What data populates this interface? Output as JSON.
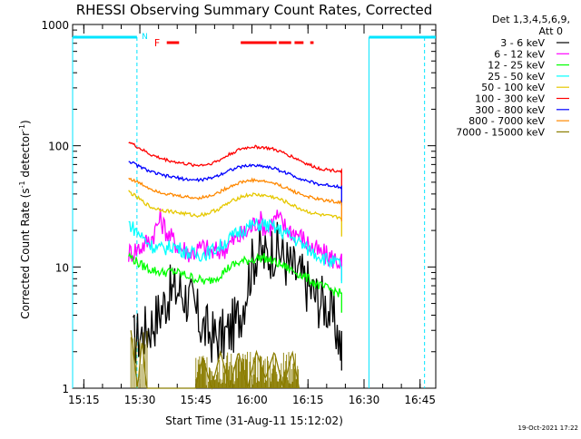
{
  "chart_data": {
    "type": "line",
    "title": "RHESSI Observing Summary Count Rates, Corrected",
    "xlabel": "Start Time (31-Aug-11 15:12:02)",
    "ylabel_main": "Corrected Count Rate (s",
    "ylabel_sup1": "-1",
    "ylabel_mid": " detector",
    "ylabel_sup2": "-1",
    "ylabel_end": ")",
    "yscale": "log",
    "ylim": [
      1,
      1000
    ],
    "xlim_minutes": [
      15.2,
      16.82
    ],
    "x_ticks": [
      "15:15",
      "15:30",
      "15:45",
      "16:00",
      "16:15",
      "16:30",
      "16:45"
    ],
    "y_ticks": [
      "1",
      "10",
      "100",
      "1000"
    ],
    "legend_title_line1": "Det 1,3,4,5,6,9,",
    "legend_title_line2": "Att 0",
    "footer_date": "19-Oct-2021 17:22",
    "flag_labels": {
      "night": "N",
      "flare": "F"
    },
    "colors": {
      "axis": "#000000",
      "night": "#00e5ff",
      "flare": "#ff0000"
    },
    "series": [
      {
        "name": "3 - 6 keV",
        "color": "#000000",
        "points": [
          [
            15.47,
            2.5
          ],
          [
            15.53,
            3.0
          ],
          [
            15.58,
            4.0
          ],
          [
            15.63,
            6.0
          ],
          [
            15.68,
            6.5
          ],
          [
            15.73,
            5.0
          ],
          [
            15.78,
            3.2
          ],
          [
            15.83,
            2.6
          ],
          [
            15.88,
            2.7
          ],
          [
            15.93,
            3.5
          ],
          [
            15.96,
            5.0
          ],
          [
            15.99,
            9.0
          ],
          [
            16.02,
            13.5
          ],
          [
            16.06,
            12.0
          ],
          [
            16.1,
            14.5
          ],
          [
            16.13,
            13.0
          ],
          [
            16.17,
            10.0
          ],
          [
            16.21,
            8.5
          ],
          [
            16.25,
            7.0
          ],
          [
            16.29,
            5.5
          ],
          [
            16.33,
            5.0
          ],
          [
            16.38,
            3.0
          ],
          [
            16.4,
            2.0
          ]
        ]
      },
      {
        "name": "6 - 12 keV",
        "color": "#ff00ff",
        "points": [
          [
            15.45,
            13.0
          ],
          [
            15.5,
            14.5
          ],
          [
            15.55,
            17.0
          ],
          [
            15.59,
            25.0
          ],
          [
            15.63,
            18.0
          ],
          [
            15.68,
            14.5
          ],
          [
            15.73,
            13.0
          ],
          [
            15.78,
            14.5
          ],
          [
            15.83,
            13.0
          ],
          [
            15.88,
            14.5
          ],
          [
            15.93,
            17.0
          ],
          [
            15.98,
            19.5
          ],
          [
            16.03,
            25.0
          ],
          [
            16.07,
            20.0
          ],
          [
            16.11,
            26.0
          ],
          [
            16.15,
            21.0
          ],
          [
            16.2,
            19.0
          ],
          [
            16.25,
            15.5
          ],
          [
            16.3,
            13.0
          ],
          [
            16.35,
            12.0
          ],
          [
            16.4,
            11.0
          ]
        ]
      },
      {
        "name": "12 - 25 keV",
        "color": "#00ff00",
        "points": [
          [
            15.45,
            12.5
          ],
          [
            15.5,
            10.5
          ],
          [
            15.55,
            9.5
          ],
          [
            15.6,
            9.0
          ],
          [
            15.65,
            9.2
          ],
          [
            15.7,
            8.6
          ],
          [
            15.75,
            8.0
          ],
          [
            15.8,
            7.5
          ],
          [
            15.85,
            8.4
          ],
          [
            15.9,
            10.0
          ],
          [
            15.95,
            11.0
          ],
          [
            16.0,
            11.5
          ],
          [
            16.05,
            12.0
          ],
          [
            16.1,
            11.0
          ],
          [
            16.15,
            10.0
          ],
          [
            16.2,
            9.0
          ],
          [
            16.25,
            8.0
          ],
          [
            16.3,
            7.0
          ],
          [
            16.35,
            6.5
          ],
          [
            16.4,
            6.0
          ]
        ]
      },
      {
        "name": "25 - 50 keV",
        "color": "#00ffff",
        "points": [
          [
            15.45,
            23.0
          ],
          [
            15.5,
            18.5
          ],
          [
            15.55,
            15.0
          ],
          [
            15.6,
            14.0
          ],
          [
            15.65,
            15.0
          ],
          [
            15.7,
            13.5
          ],
          [
            15.75,
            12.5
          ],
          [
            15.8,
            13.0
          ],
          [
            15.85,
            14.5
          ],
          [
            15.9,
            17.0
          ],
          [
            15.95,
            20.0
          ],
          [
            16.0,
            22.0
          ],
          [
            16.05,
            22.5
          ],
          [
            16.1,
            21.0
          ],
          [
            16.15,
            19.0
          ],
          [
            16.2,
            16.5
          ],
          [
            16.25,
            14.0
          ],
          [
            16.3,
            12.5
          ],
          [
            16.35,
            11.0
          ],
          [
            16.4,
            10.5
          ]
        ]
      },
      {
        "name": "50 - 100 keV",
        "color": "#e6c800",
        "points": [
          [
            15.45,
            42.0
          ],
          [
            15.5,
            36.0
          ],
          [
            15.55,
            31.0
          ],
          [
            15.6,
            29.5
          ],
          [
            15.65,
            28.5
          ],
          [
            15.7,
            27.5
          ],
          [
            15.75,
            26.5
          ],
          [
            15.8,
            27.5
          ],
          [
            15.85,
            30.0
          ],
          [
            15.9,
            34.0
          ],
          [
            15.95,
            38.0
          ],
          [
            16.0,
            39.5
          ],
          [
            16.05,
            39.0
          ],
          [
            16.1,
            37.5
          ],
          [
            16.15,
            34.5
          ],
          [
            16.2,
            31.0
          ],
          [
            16.25,
            28.5
          ],
          [
            16.3,
            27.0
          ],
          [
            16.35,
            26.0
          ],
          [
            16.4,
            25.5
          ]
        ]
      },
      {
        "name": "100 - 300 keV",
        "color": "#ff0000",
        "points": [
          [
            15.45,
            108.0
          ],
          [
            15.5,
            95.0
          ],
          [
            15.55,
            84.0
          ],
          [
            15.6,
            78.0
          ],
          [
            15.65,
            74.0
          ],
          [
            15.7,
            71.0
          ],
          [
            15.75,
            69.0
          ],
          [
            15.8,
            70.0
          ],
          [
            15.85,
            75.0
          ],
          [
            15.9,
            85.0
          ],
          [
            15.95,
            94.0
          ],
          [
            16.0,
            98.0
          ],
          [
            16.05,
            97.0
          ],
          [
            16.1,
            93.0
          ],
          [
            16.15,
            86.0
          ],
          [
            16.2,
            78.0
          ],
          [
            16.25,
            70.0
          ],
          [
            16.3,
            65.0
          ],
          [
            16.35,
            63.0
          ],
          [
            16.4,
            62.0
          ]
        ]
      },
      {
        "name": "300 - 800 keV",
        "color": "#0000ff",
        "points": [
          [
            15.45,
            75.0
          ],
          [
            15.5,
            67.0
          ],
          [
            15.55,
            61.0
          ],
          [
            15.6,
            57.0
          ],
          [
            15.65,
            55.0
          ],
          [
            15.7,
            53.0
          ],
          [
            15.75,
            52.0
          ],
          [
            15.8,
            53.0
          ],
          [
            15.85,
            57.0
          ],
          [
            15.9,
            63.0
          ],
          [
            15.95,
            67.0
          ],
          [
            16.0,
            69.0
          ],
          [
            16.05,
            68.0
          ],
          [
            16.1,
            65.0
          ],
          [
            16.15,
            60.0
          ],
          [
            16.2,
            55.0
          ],
          [
            16.25,
            51.0
          ],
          [
            16.3,
            48.0
          ],
          [
            16.35,
            47.0
          ],
          [
            16.4,
            46.0
          ]
        ]
      },
      {
        "name": "800 - 7000 keV",
        "color": "#ff8800",
        "points": [
          [
            15.45,
            54.0
          ],
          [
            15.5,
            49.0
          ],
          [
            15.55,
            44.0
          ],
          [
            15.6,
            41.0
          ],
          [
            15.65,
            39.0
          ],
          [
            15.7,
            38.0
          ],
          [
            15.75,
            37.0
          ],
          [
            15.8,
            38.0
          ],
          [
            15.85,
            41.0
          ],
          [
            15.9,
            46.0
          ],
          [
            15.95,
            50.0
          ],
          [
            16.0,
            52.0
          ],
          [
            16.05,
            51.0
          ],
          [
            16.1,
            49.0
          ],
          [
            16.15,
            45.0
          ],
          [
            16.2,
            41.0
          ],
          [
            16.25,
            38.0
          ],
          [
            16.3,
            36.0
          ],
          [
            16.35,
            35.0
          ],
          [
            16.4,
            34.0
          ]
        ]
      },
      {
        "name": "7000 - 15000 keV",
        "color": "#8b7d00",
        "points": [
          [
            15.46,
            3.0
          ],
          [
            15.49,
            1.0
          ],
          [
            15.51,
            2.5
          ],
          [
            15.53,
            1.0
          ],
          [
            15.75,
            1.0
          ],
          [
            15.78,
            1.8
          ],
          [
            15.82,
            1.0
          ],
          [
            15.86,
            2.0
          ],
          [
            15.9,
            1.0
          ],
          [
            15.94,
            2.0
          ],
          [
            15.98,
            1.0
          ],
          [
            16.02,
            2.0
          ],
          [
            16.06,
            1.2
          ],
          [
            16.1,
            2.0
          ],
          [
            16.14,
            1.0
          ],
          [
            16.18,
            2.0
          ],
          [
            16.21,
            1.0
          ]
        ]
      }
    ]
  }
}
